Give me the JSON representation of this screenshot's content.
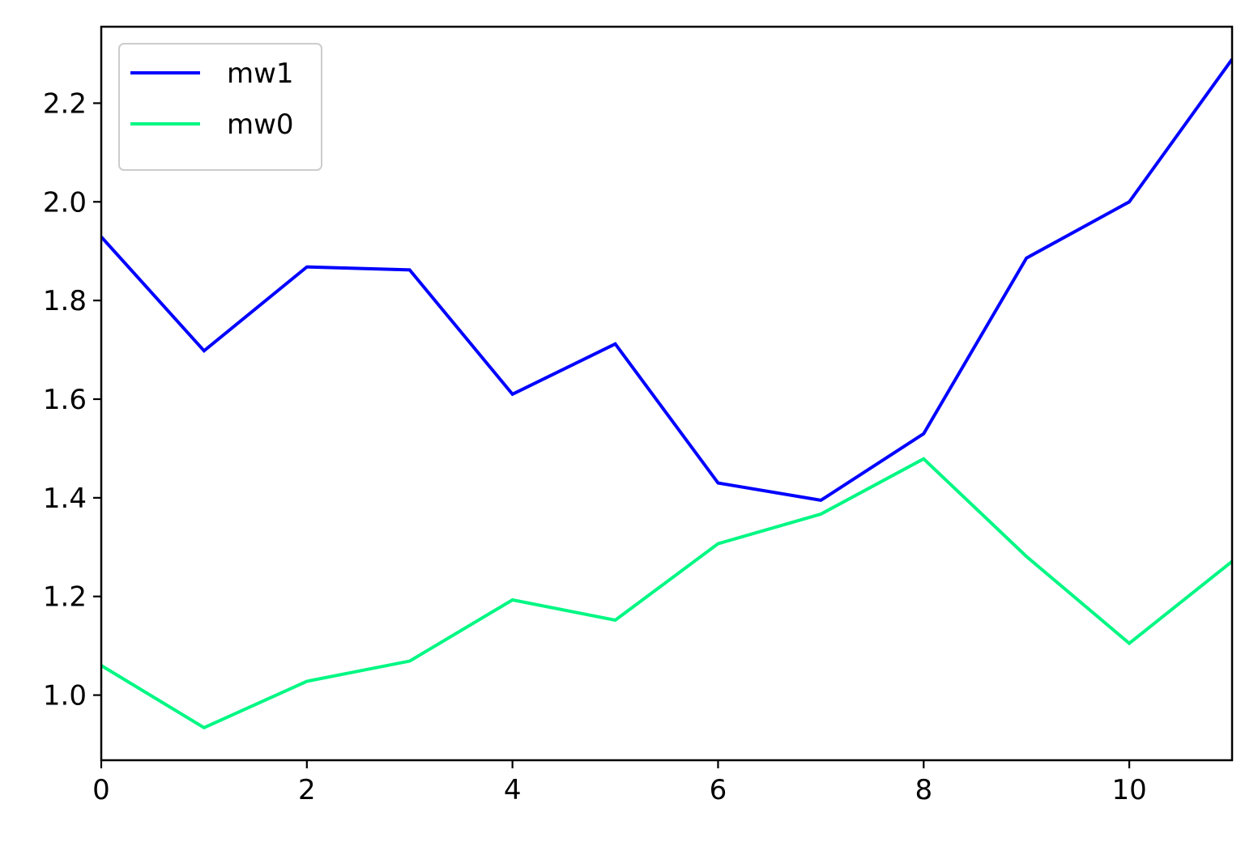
{
  "chart_data": {
    "type": "line",
    "title": "",
    "xlabel": "",
    "ylabel": "",
    "x": [
      0,
      1,
      2,
      3,
      4,
      5,
      6,
      7,
      8,
      9,
      10,
      11
    ],
    "xlim": [
      0,
      11
    ],
    "ylim": [
      0.868,
      2.355
    ],
    "xticks": [
      0,
      2,
      4,
      6,
      8,
      10
    ],
    "yticks": [
      1.0,
      1.2,
      1.4,
      1.6,
      1.8,
      2.0,
      2.2
    ],
    "grid": false,
    "legend_position": "top-left",
    "series": [
      {
        "name": "mw1",
        "color": "#0000ff",
        "values": [
          1.929,
          1.698,
          1.868,
          1.862,
          1.61,
          1.712,
          1.43,
          1.395,
          1.53,
          1.886,
          2.0,
          2.289
        ]
      },
      {
        "name": "mw0",
        "color": "#00f783",
        "values": [
          1.06,
          0.934,
          1.028,
          1.069,
          1.193,
          1.152,
          1.307,
          1.367,
          1.479,
          1.281,
          1.105,
          1.271
        ]
      }
    ]
  }
}
